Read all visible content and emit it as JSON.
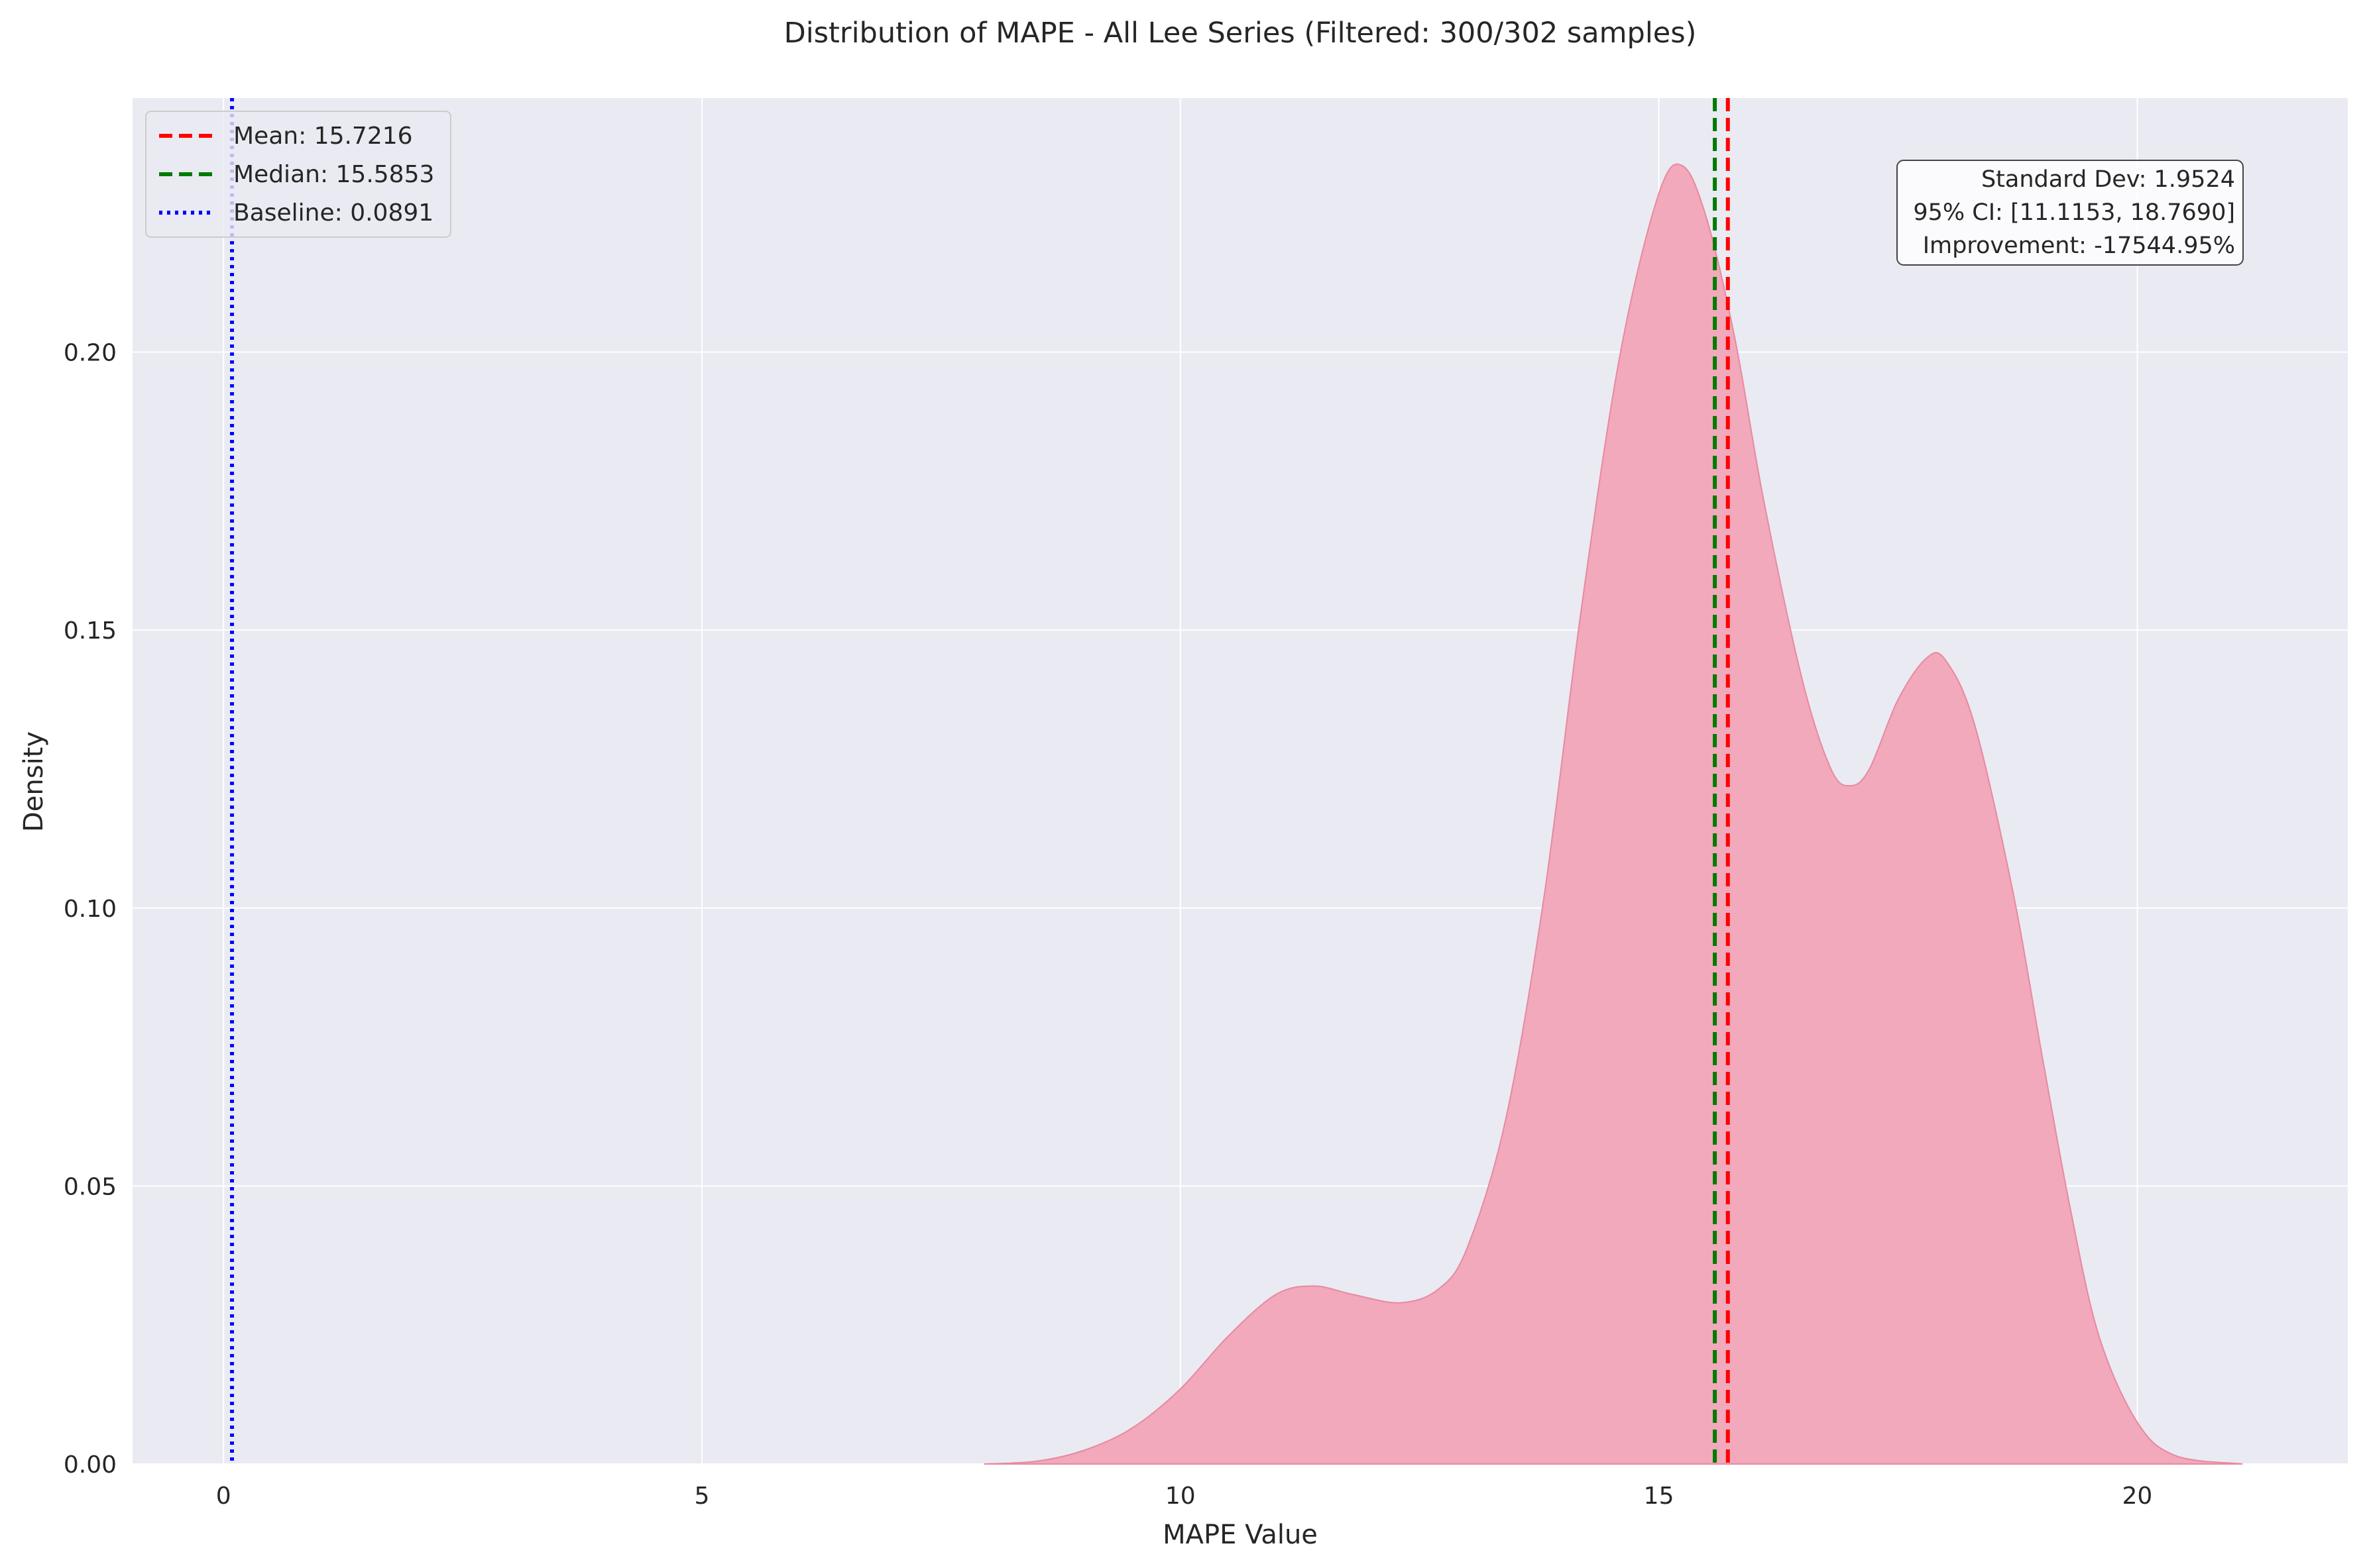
{
  "chart_data": {
    "type": "area",
    "title": "Distribution of MAPE - All Lee Series (Filtered: 300/302 samples)",
    "xlabel": "MAPE Value",
    "ylabel": "Density",
    "xlim": [
      -0.95,
      22.2
    ],
    "ylim": [
      0,
      0.2457
    ],
    "xticks": [
      0,
      5,
      10,
      15,
      20
    ],
    "xtick_labels": [
      "0",
      "5",
      "10",
      "15",
      "20"
    ],
    "yticks": [
      0,
      0.05,
      0.1,
      0.15,
      0.2
    ],
    "ytick_labels": [
      "0.00",
      "0.05",
      "0.10",
      "0.15",
      "0.20"
    ],
    "grid": true,
    "legend_position": "top-left",
    "series": [
      {
        "x": [
          7.95,
          8.5,
          9.0,
          9.5,
          10.0,
          10.5,
          11.0,
          11.4,
          11.8,
          12.3,
          12.7,
          13.0,
          13.4,
          13.8,
          14.2,
          14.6,
          15.0,
          15.25,
          15.5,
          15.8,
          16.1,
          16.5,
          16.8,
          17.0,
          17.2,
          17.5,
          17.8,
          18.0,
          18.3,
          18.7,
          19.0,
          19.3,
          19.6,
          20.0,
          20.4,
          21.1
        ],
        "y": [
          0.0,
          0.0005,
          0.0025,
          0.0065,
          0.0135,
          0.023,
          0.0305,
          0.032,
          0.0305,
          0.029,
          0.0315,
          0.039,
          0.062,
          0.102,
          0.155,
          0.2,
          0.2285,
          0.2335,
          0.224,
          0.202,
          0.173,
          0.141,
          0.125,
          0.122,
          0.125,
          0.1375,
          0.145,
          0.1445,
          0.133,
          0.103,
          0.074,
          0.046,
          0.023,
          0.0075,
          0.0015,
          0.0
        ],
        "color": "#f1a9bb",
        "edge_color": "#e889a0"
      }
    ],
    "vlines": [
      {
        "label": "Mean: 15.7216",
        "value": 15.7216,
        "color": "#ff0000",
        "style": "dashed"
      },
      {
        "label": "Median: 15.5853",
        "value": 15.5853,
        "color": "#007a00",
        "style": "dashed"
      },
      {
        "label": "Baseline: 0.0891",
        "value": 0.0891,
        "color": "#0000ff",
        "style": "dotted"
      }
    ],
    "stats_box": [
      "Standard Dev: 1.9524",
      "95% CI: [11.1153, 18.7690]",
      "Improvement: -17544.95%"
    ],
    "colors": {
      "plot_background": "#eaeaf2",
      "grid": "#ffffff"
    }
  }
}
